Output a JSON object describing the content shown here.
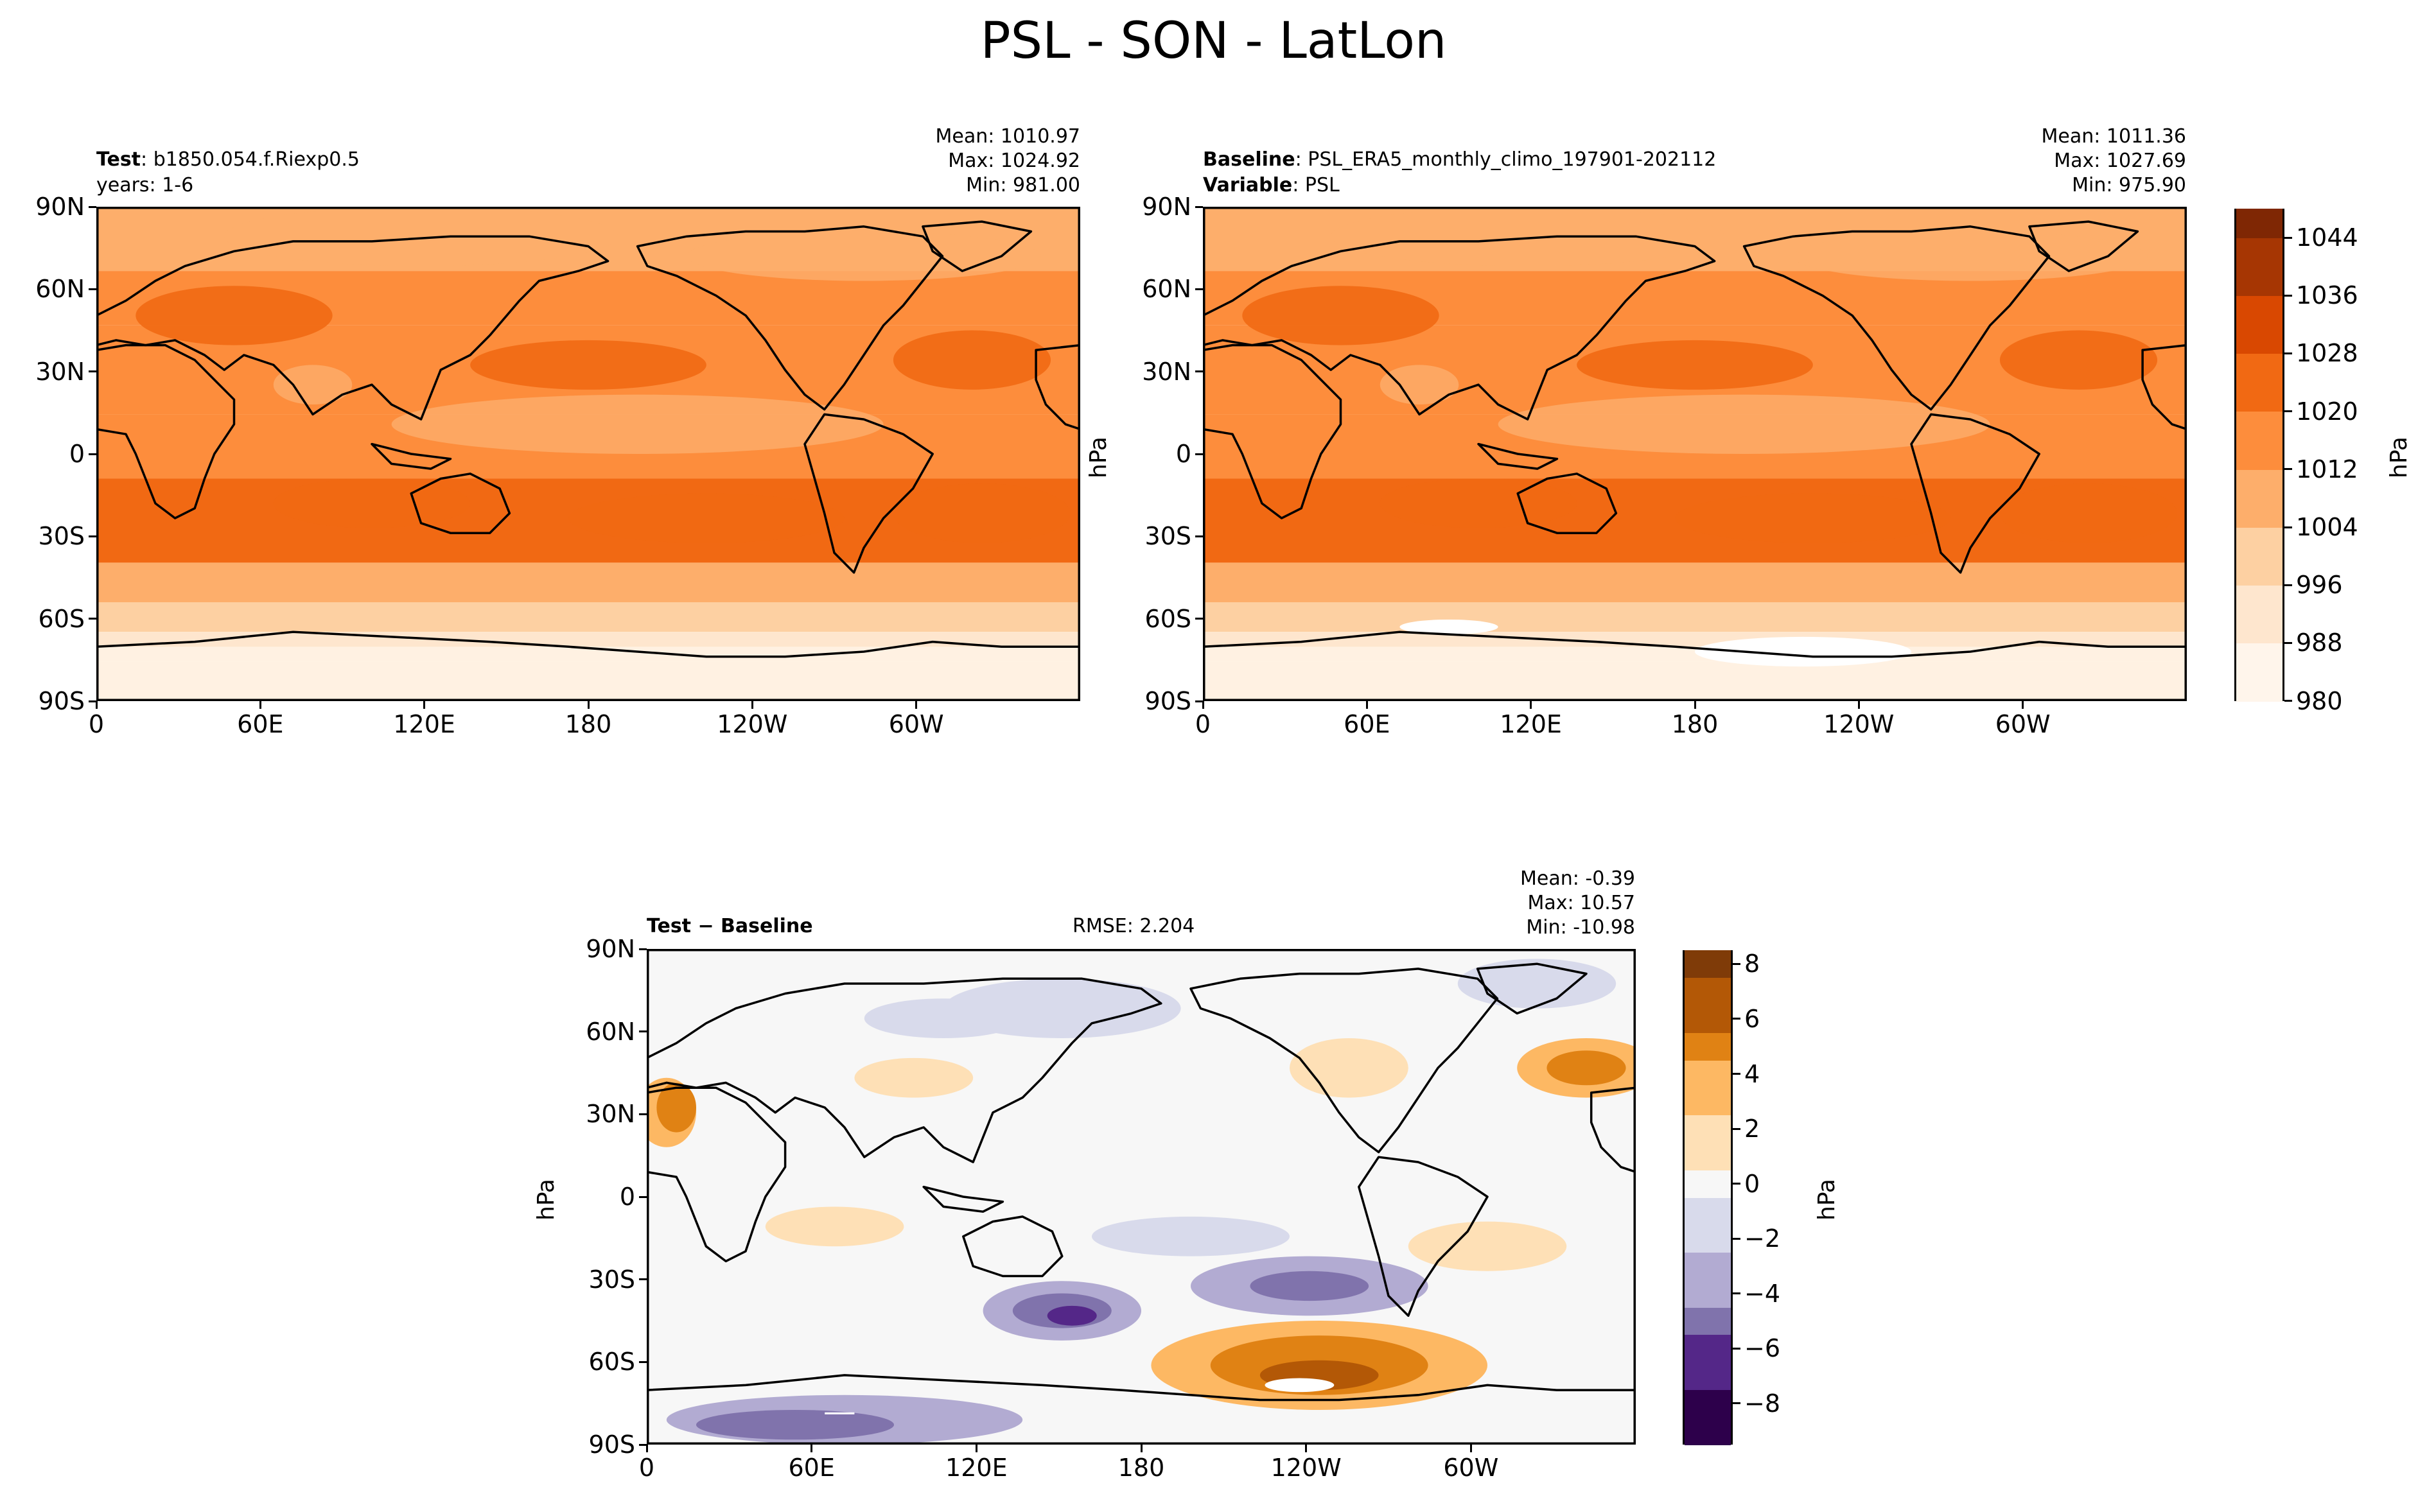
{
  "title": "PSL - SON - LatLon",
  "panels": [
    {
      "id": "test",
      "left_bold": "Test",
      "left_text": "b1850.054.f.Riexp0.5",
      "left_line2": "years: 1-6",
      "stats": [
        "Mean: 1010.97",
        "Max: 1024.92",
        "Min: 981.00"
      ]
    },
    {
      "id": "baseline",
      "left_bold": "Baseline",
      "left_text": "PSL_ERA5_monthly_climo_197901-202112",
      "left_bold2": "Variable",
      "left_text2": "PSL",
      "stats": [
        "Mean: 1011.36",
        "Max: 1027.69",
        "Min: 975.90"
      ]
    },
    {
      "id": "diff",
      "left_bold": "Test − Baseline",
      "center_text": "RMSE: 2.204",
      "stats": [
        "Mean: -0.39",
        "Max: 10.57",
        "Min: -10.98"
      ]
    }
  ],
  "units": "hPa",
  "lat_ticks": [
    "90N",
    "60N",
    "30N",
    "0",
    "30S",
    "60S",
    "90S"
  ],
  "lon_ticks": [
    "0",
    "60E",
    "120E",
    "180",
    "120W",
    "60W"
  ],
  "colorbars": {
    "abs": {
      "ticks": [
        "1044",
        "1036",
        "1028",
        "1020",
        "1012",
        "1004",
        "996",
        "988",
        "980"
      ]
    },
    "diff": {
      "ticks": [
        "8",
        "6",
        "4",
        "2",
        "0",
        "−2",
        "−4",
        "−6",
        "−8"
      ]
    }
  },
  "colors": {
    "oranges": [
      "#fff5eb",
      "#fee6ce",
      "#fdd0a2",
      "#fdae6b",
      "#fd8d3c",
      "#f16913",
      "#d94801",
      "#a63603",
      "#7f2704"
    ],
    "puor": [
      "#2d004b",
      "#542788",
      "#8073ac",
      "#b2abd2",
      "#d8daeb",
      "#f7f7f7",
      "#fee0b6",
      "#fdb863",
      "#e08214",
      "#b35806",
      "#7f3b08"
    ]
  },
  "chart_data": [
    {
      "type": "heatmap",
      "title": "Test: b1850.054.f.Riexp0.5",
      "subtitle": "years: 1-6",
      "xlabel": "",
      "ylabel": "",
      "x_ticks": [
        "0",
        "60E",
        "120E",
        "180",
        "120W",
        "60W"
      ],
      "y_ticks": [
        "90N",
        "60N",
        "30N",
        "0",
        "30S",
        "60S",
        "90S"
      ],
      "colorbar_range": [
        980,
        1048
      ],
      "mean": 1010.97,
      "max": 1024.92,
      "min": 981.0
    },
    {
      "type": "heatmap",
      "title": "Baseline: PSL_ERA5_monthly_climo_197901-202112",
      "subtitle": "Variable: PSL",
      "xlabel": "",
      "ylabel": "hPa",
      "x_ticks": [
        "0",
        "60E",
        "120E",
        "180",
        "120W",
        "60W"
      ],
      "y_ticks": [
        "90N",
        "60N",
        "30N",
        "0",
        "30S",
        "60S",
        "90S"
      ],
      "colorbar_range": [
        980,
        1048
      ],
      "colorbar_label": "hPa",
      "mean": 1011.36,
      "max": 1027.69,
      "min": 975.9
    },
    {
      "type": "heatmap",
      "title": "Test − Baseline",
      "subtitle": "RMSE: 2.204",
      "xlabel": "",
      "ylabel": "hPa",
      "x_ticks": [
        "0",
        "60E",
        "120E",
        "180",
        "120W",
        "60W"
      ],
      "y_ticks": [
        "90N",
        "60N",
        "30N",
        "0",
        "30S",
        "60S",
        "90S"
      ],
      "colorbar_range": [
        -9,
        9
      ],
      "colorbar_label": "hPa",
      "mean": -0.39,
      "max": 10.57,
      "min": -10.98,
      "rmse": 2.204
    }
  ]
}
